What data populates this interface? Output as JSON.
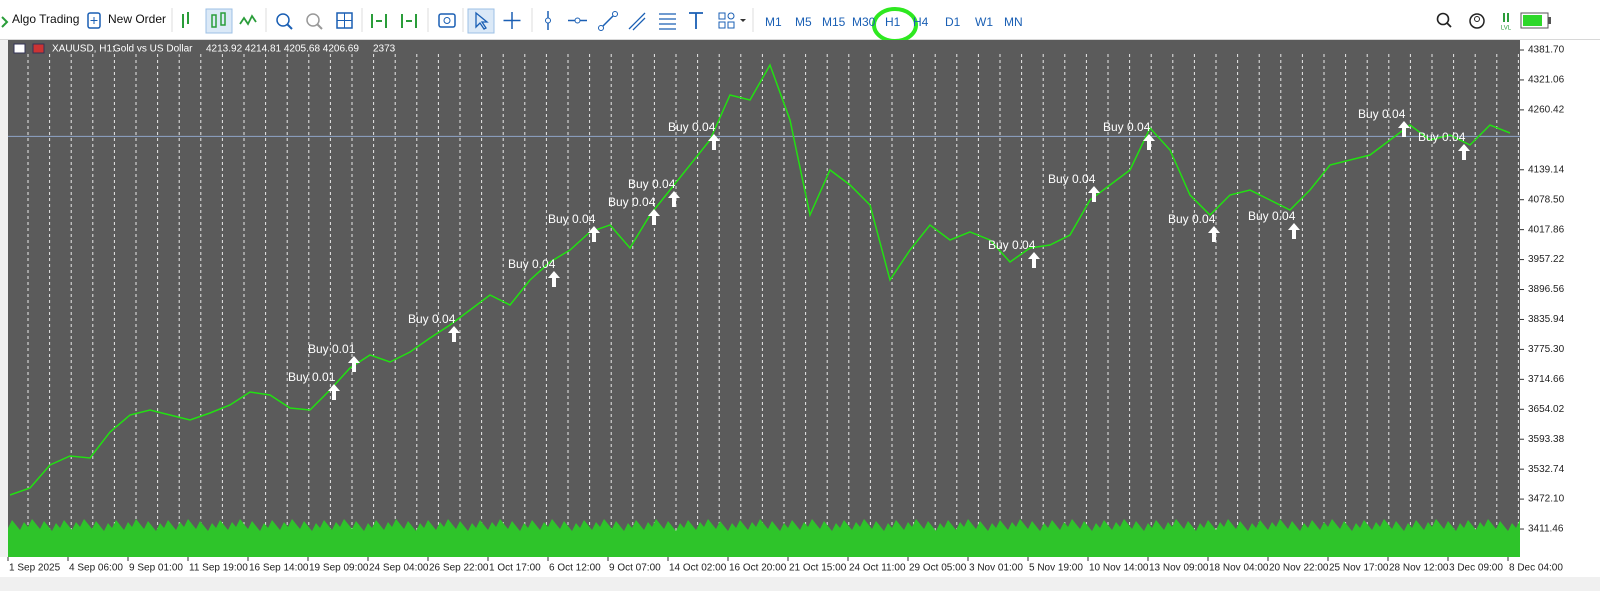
{
  "toolbar": {
    "algo_trading": "Algo Trading",
    "new_order": "New Order",
    "timeframes": [
      "M1",
      "M5",
      "M15",
      "M30",
      "H1",
      "H4",
      "D1",
      "W1",
      "MN"
    ]
  },
  "chart_data": {
    "type": "line",
    "header": {
      "symbol": "XAUUSD, H1:",
      "description": "Gold vs US Dollar",
      "ohlc": "4213.92 4214.81 4205.68 4206.69",
      "volume": "2373"
    },
    "x_labels": [
      "1 Sep 2025",
      "4 Sep 06:00",
      "9 Sep 01:00",
      "11 Sep 19:00",
      "16 Sep 14:00",
      "19 Sep 09:00",
      "24 Sep 04:00",
      "26 Sep 22:00",
      "1 Oct 17:00",
      "6 Oct 12:00",
      "9 Oct 07:00",
      "14 Oct 02:00",
      "16 Oct 20:00",
      "21 Oct 15:00",
      "24 Oct 11:00",
      "29 Oct 05:00",
      "3 Nov 01:00",
      "5 Nov 19:00",
      "10 Nov 14:00",
      "13 Nov 09:00",
      "18 Nov 04:00",
      "20 Nov 22:00",
      "25 Nov 17:00",
      "28 Nov 12:00",
      "3 Dec 09:00",
      "8 Dec 04:00"
    ],
    "series": [
      {
        "color": "#22e012",
        "values": [
          3480.4,
          3494.6,
          3541.2,
          3559.4,
          3555.3,
          3608.0,
          3642.4,
          3652.6,
          3642.4,
          3632.3,
          3646.5,
          3662.7,
          3689.0,
          3682.9,
          3656.6,
          3652.6,
          3693.1,
          3737.6,
          3764.0,
          3749.8,
          3770.0,
          3798.4,
          3824.7,
          3855.1,
          3885.5,
          3865.2,
          3915.9,
          3952.3,
          3976.6,
          4013.1,
          4027.3,
          3980.7,
          4047.5,
          4098.1,
          4148.8,
          4199.4,
          4290.6,
          4280.4,
          4351.3,
          4239.9,
          4047.5,
          4138.7,
          4108.3,
          4067.8,
          3915.9,
          3976.6,
          4027.3,
          3996.9,
          4013.1,
          3996.9,
          3952.3,
          3980.7,
          3986.7,
          4007.0,
          4077.9,
          4108.3,
          4138.7,
          4223.7,
          4179.2,
          4088.0,
          4047.5,
          4088.0,
          4098.1,
          4077.9,
          4057.6,
          4098.1,
          4148.8,
          4158.9,
          4169.0,
          4199.4,
          4229.8,
          4199.4,
          4209.5,
          4189.3,
          4229.8,
          4213.6
        ]
      }
    ],
    "current_price": 4206.69,
    "ylim": [
      3354.82,
      4401.95
    ],
    "yticks": [
      {
        "value": 4381.7,
        "label": "4381.70"
      },
      {
        "value": 4321.06,
        "label": "4321.06"
      },
      {
        "value": 4260.42,
        "label": "4260.42"
      },
      {
        "value": 4139.14,
        "label": "4139.14"
      },
      {
        "value": 4078.5,
        "label": "4078.50"
      },
      {
        "value": 4017.86,
        "label": "4017.86"
      },
      {
        "value": 3957.22,
        "label": "3957.22"
      },
      {
        "value": 3896.56,
        "label": "3896.56"
      },
      {
        "value": 3835.94,
        "label": "3835.94"
      },
      {
        "value": 3775.3,
        "label": "3775.30"
      },
      {
        "value": 3714.66,
        "label": "3714.66"
      },
      {
        "value": 3654.02,
        "label": "3654.02"
      },
      {
        "value": 3593.38,
        "label": "3593.38"
      },
      {
        "value": 3532.74,
        "label": "3532.74"
      },
      {
        "value": 3472.1,
        "label": "3472.10"
      },
      {
        "value": 3411.46,
        "label": "3411.46"
      }
    ],
    "annotations": [
      {
        "text": "Buy 0.01",
        "y": 3717.4
      },
      {
        "text": "Buy 0.01",
        "y": 3774.1
      },
      {
        "text": "Buy 0.04",
        "y": 3834.9
      },
      {
        "text": "Buy 0.04",
        "y": 3946.2
      },
      {
        "text": "Buy 0.04",
        "y": 4037.4
      },
      {
        "text": "Buy 0.04",
        "y": 4071.8
      },
      {
        "text": "Buy 0.04",
        "y": 4108.3
      },
      {
        "text": "Buy 0.04",
        "y": 4223.7
      },
      {
        "text": "Buy 0.04",
        "y": 3984.7
      },
      {
        "text": "Buy 0.04",
        "y": 4118.4
      },
      {
        "text": "Buy 0.04",
        "y": 4223.7
      },
      {
        "text": "Buy 0.04",
        "y": 4037.4
      },
      {
        "text": "Buy 0.04",
        "y": 4043.5
      },
      {
        "text": "Buy 0.04",
        "y": 4250.0
      },
      {
        "text": "Buy 0.04",
        "y": 4203.5
      }
    ]
  }
}
